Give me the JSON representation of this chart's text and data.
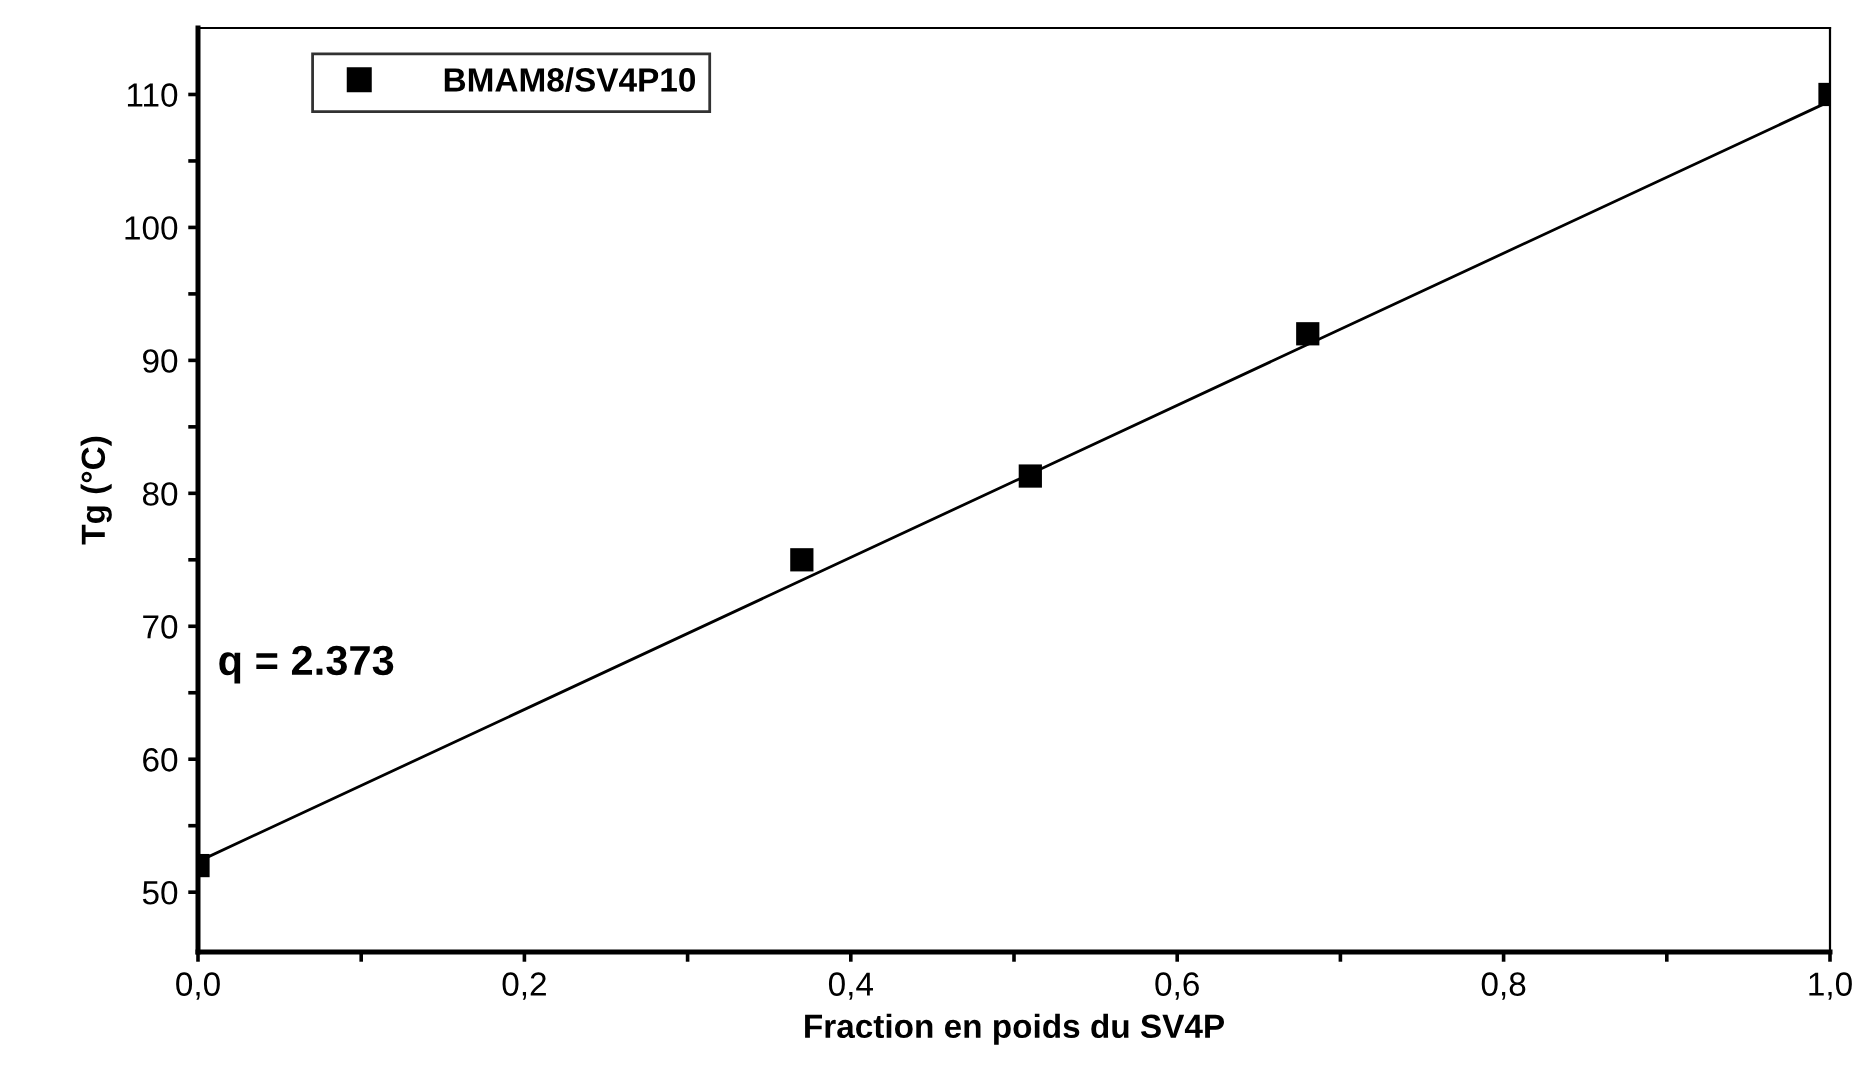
{
  "chart_data": {
    "type": "scatter",
    "xlabel": "Fraction en poids du SV4P",
    "ylabel": "Tg (°C)",
    "annotations": [
      "q = 2.373"
    ],
    "series": [
      {
        "name": "BMAM8/SV4P10",
        "color": "#000000",
        "marker": "square",
        "x": [
          0,
          0.37,
          0.51,
          0.68,
          1.0
        ],
        "values": [
          52,
          75,
          81.3,
          92,
          110
        ]
      },
      {
        "type": "line",
        "color": "#000000",
        "marker": "none",
        "line_style": "solid",
        "x": [
          0,
          1.0
        ],
        "values": [
          52.3,
          109.5
        ]
      }
    ],
    "xlim": [
      0,
      1.0
    ],
    "ylim": [
      45.5,
      115
    ],
    "xticks": [
      {
        "value": 0,
        "label": "0,0"
      },
      {
        "value": 0.1,
        "label": null
      },
      {
        "value": 0.2,
        "label": "0,2"
      },
      {
        "value": 0.3,
        "label": null
      },
      {
        "value": 0.4,
        "label": "0,4"
      },
      {
        "value": 0.5,
        "label": null
      },
      {
        "value": 0.6,
        "label": "0,6"
      },
      {
        "value": 0.7,
        "label": null
      },
      {
        "value": 0.8,
        "label": "0,8"
      },
      {
        "value": 0.9,
        "label": null
      },
      {
        "value": 1.0,
        "label": "1,0"
      }
    ],
    "yticks": [
      50,
      {
        "value": 55,
        "label": null
      },
      60,
      {
        "value": 65,
        "label": null
      },
      70,
      {
        "value": 75,
        "label": null
      },
      80,
      {
        "value": 85,
        "label": null
      },
      90,
      {
        "value": 95,
        "label": null
      },
      100,
      {
        "value": 105,
        "label": null
      },
      110
    ],
    "grid": false,
    "legend": "top left"
  }
}
